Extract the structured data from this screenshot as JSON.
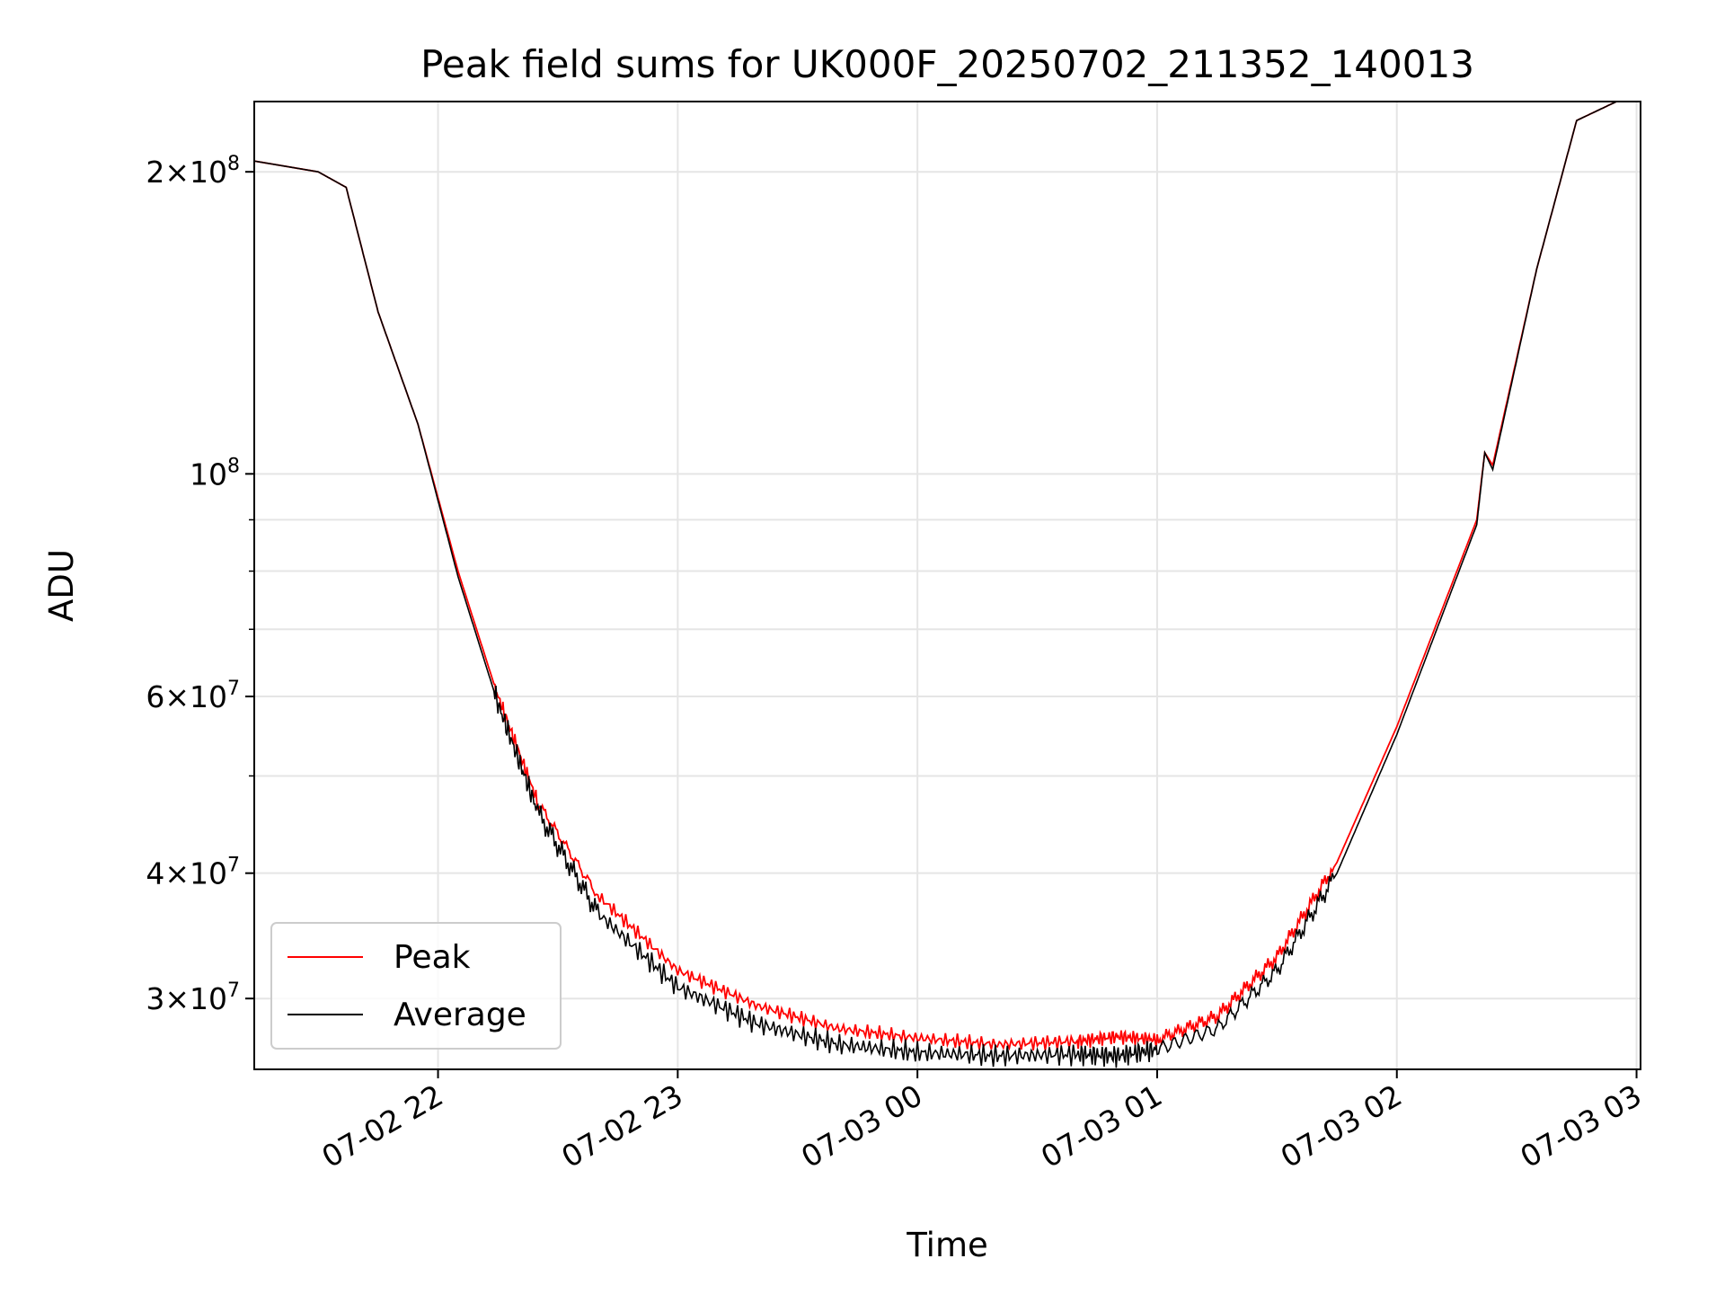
{
  "chart_data": {
    "type": "line",
    "title": "Peak field sums for UK000F_20250702_211352_140013",
    "xlabel": "Time",
    "ylabel": "ADU",
    "yscale": "log",
    "ylim": [
      25500000,
      235000000
    ],
    "xlim": [
      "2025-07-02 21:14",
      "2025-07-03 03:01"
    ],
    "grid": true,
    "legend": "lower-left",
    "x_ticks": [
      "07-02 22",
      "07-02 23",
      "07-03 00",
      "07-03 01",
      "07-03 02",
      "07-03 03"
    ],
    "y_ticks_major": [
      {
        "base": "10",
        "exp": "8",
        "value": 100000000
      },
      {
        "base": "2×10",
        "exp": "8",
        "value": 200000000
      },
      {
        "base": "3×10",
        "exp": "7",
        "value": 30000000
      },
      {
        "base": "4×10",
        "exp": "7",
        "value": 40000000
      },
      {
        "base": "6×10",
        "exp": "7",
        "value": 60000000
      }
    ],
    "y_ticks_minor": [
      50000000,
      70000000,
      80000000,
      90000000
    ],
    "series": [
      {
        "name": "Peak",
        "color": "#ff0000",
        "x": [
          "2025-07-02 21:14",
          "2025-07-02 21:30",
          "2025-07-02 21:37",
          "2025-07-02 21:45",
          "2025-07-02 21:55",
          "2025-07-02 22:05",
          "2025-07-02 22:15",
          "2025-07-02 22:25",
          "2025-07-02 22:40",
          "2025-07-02 23:00",
          "2025-07-02 23:20",
          "2025-07-02 23:40",
          "2025-07-03 00:00",
          "2025-07-03 00:20",
          "2025-07-03 00:40",
          "2025-07-03 00:50",
          "2025-07-03 01:00",
          "2025-07-03 01:15",
          "2025-07-03 01:30",
          "2025-07-03 01:45",
          "2025-07-03 02:00",
          "2025-07-03 02:10",
          "2025-07-03 02:20",
          "2025-07-03 02:22",
          "2025-07-03 02:24",
          "2025-07-03 02:35",
          "2025-07-03 02:45",
          "2025-07-03 02:55",
          "2025-07-03 03:01"
        ],
        "y": [
          205000000,
          200000000,
          193000000,
          145000000,
          112000000,
          80000000,
          60000000,
          47000000,
          38000000,
          32000000,
          29500000,
          28000000,
          27400000,
          27000000,
          27200000,
          27500000,
          27300000,
          28800000,
          33000000,
          41000000,
          56000000,
          71000000,
          90000000,
          105000000,
          102000000,
          160000000,
          225000000,
          235000000,
          235000000
        ]
      },
      {
        "name": "Average",
        "color": "#000000",
        "x": [
          "2025-07-02 21:14",
          "2025-07-02 21:30",
          "2025-07-02 21:37",
          "2025-07-02 21:45",
          "2025-07-02 21:55",
          "2025-07-02 22:05",
          "2025-07-02 22:15",
          "2025-07-02 22:25",
          "2025-07-02 22:40",
          "2025-07-02 23:00",
          "2025-07-02 23:20",
          "2025-07-02 23:40",
          "2025-07-03 00:00",
          "2025-07-03 00:20",
          "2025-07-03 00:40",
          "2025-07-03 00:50",
          "2025-07-03 01:00",
          "2025-07-03 01:15",
          "2025-07-03 01:30",
          "2025-07-03 01:45",
          "2025-07-03 02:00",
          "2025-07-03 02:10",
          "2025-07-03 02:20",
          "2025-07-03 02:22",
          "2025-07-03 02:24",
          "2025-07-03 02:35",
          "2025-07-03 02:45",
          "2025-07-03 02:55",
          "2025-07-03 03:01"
        ],
        "y": [
          205000000,
          200000000,
          193000000,
          145000000,
          112000000,
          79000000,
          59000000,
          46000000,
          36500000,
          30800000,
          28300000,
          27000000,
          26500000,
          26300000,
          26400000,
          26300000,
          26700000,
          28000000,
          32000000,
          40000000,
          55000000,
          70000000,
          89000000,
          105000000,
          101000000,
          160000000,
          225000000,
          235000000,
          235000000
        ]
      }
    ]
  }
}
